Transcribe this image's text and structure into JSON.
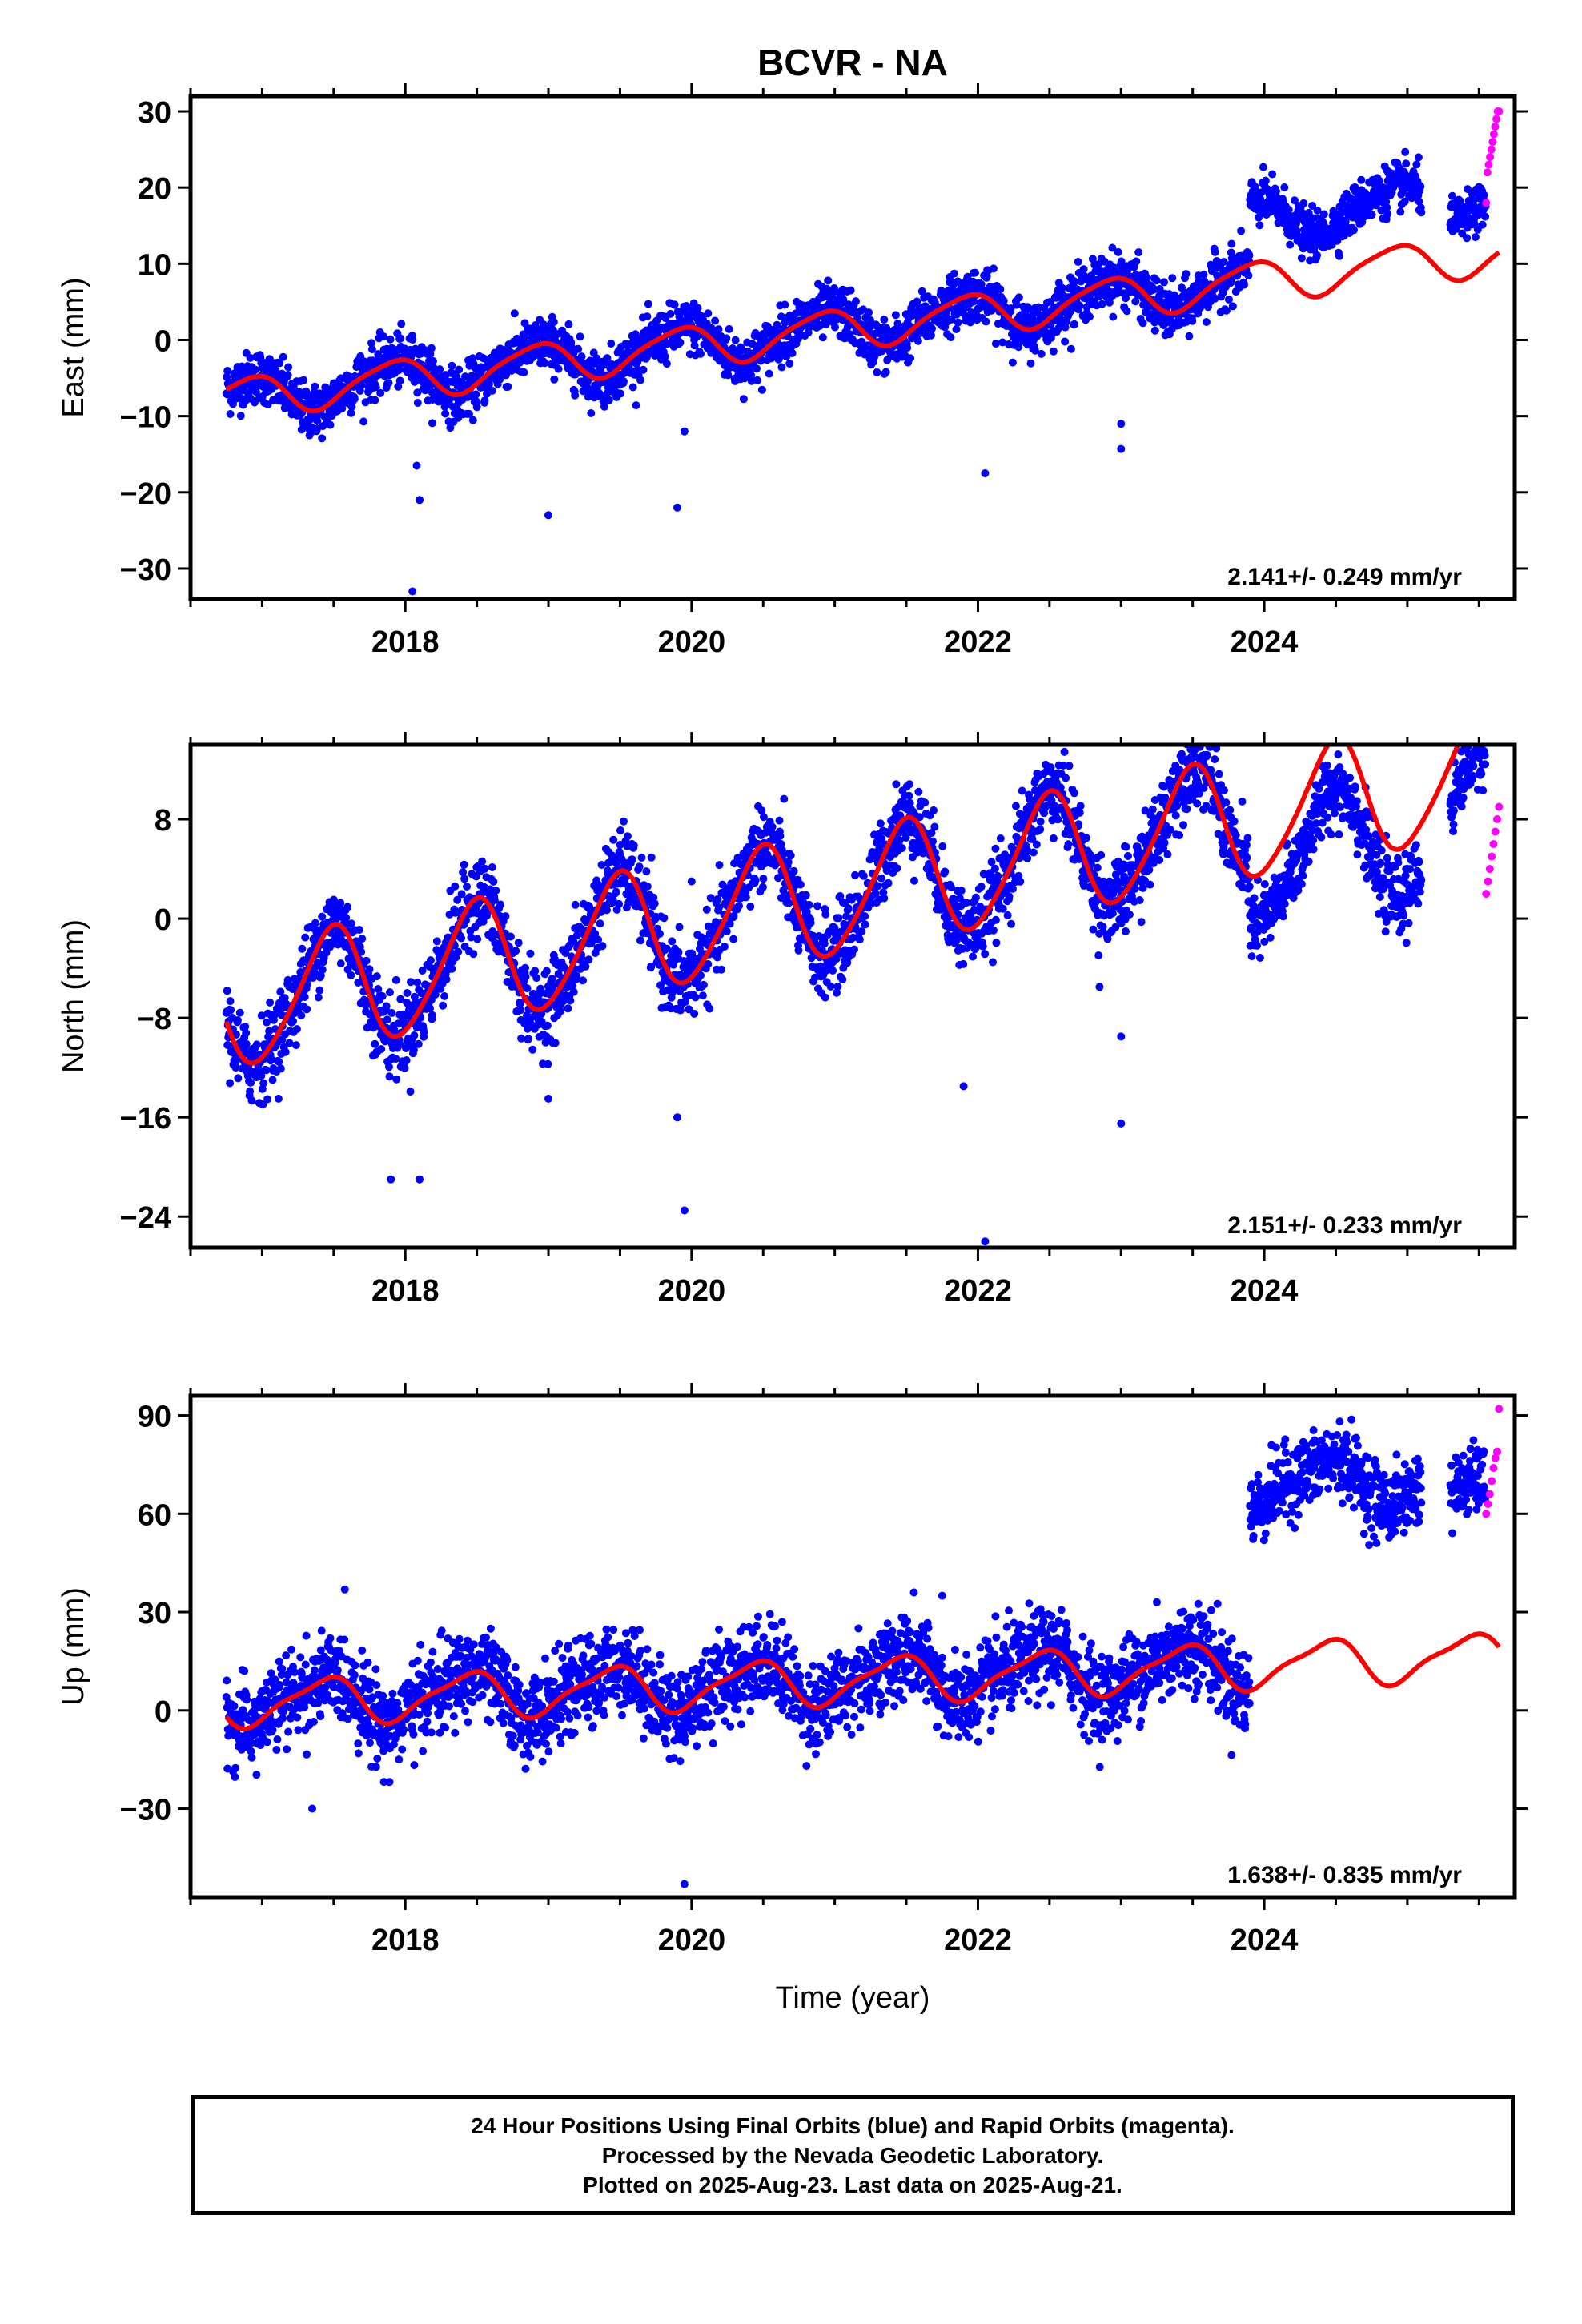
{
  "title": "BCVR - NA",
  "xlabel": "Time (year)",
  "caption": {
    "line1": "24 Hour Positions Using Final Orbits (blue) and Rapid Orbits (magenta).",
    "line2": "Processed by the Nevada Geodetic Laboratory.",
    "line3": "Plotted on 2025-Aug-23. Last data on 2025-Aug-21."
  },
  "colors": {
    "final_orbits": "#0000ff",
    "rapid_orbits": "#ff00ff",
    "model_fit": "#ff0000",
    "axes": "#000000"
  },
  "chart_data": [
    {
      "type": "scatter",
      "component": "east",
      "ylabel": "East (mm)",
      "xlim": [
        2016.5,
        2025.75
      ],
      "ylim": [
        -34,
        32
      ],
      "yticks": [
        -30,
        -20,
        -10,
        0,
        10,
        20,
        30
      ],
      "xticks": [
        2018,
        2020,
        2022,
        2024
      ],
      "rate_label": "2.141+/- 0.249 mm/yr",
      "model": {
        "rate": 2.141,
        "rate_sigma": 0.249,
        "t0": 2016.75,
        "offset": -7.7,
        "annual_sin": -1.5,
        "annual_cos": 2.1,
        "semiannual_sin": 0.4,
        "semiannual_cos": 0.3,
        "jump_2023_9": 0
      },
      "final_segments": [
        {
          "start": 2016.75,
          "end": 2023.9,
          "offset": 0,
          "scatter": 1.7
        },
        {
          "start": 2023.9,
          "end": 2025.1,
          "offset": 8,
          "scatter": 1.5
        },
        {
          "start": 2025.3,
          "end": 2025.55,
          "offset": 8,
          "scatter": 1.4
        }
      ],
      "rapid_window": [
        2025.55,
        2025.64
      ],
      "rapid_values": [
        18,
        22,
        23,
        24,
        25,
        26,
        27,
        28,
        29,
        30,
        30
      ],
      "outliers": [
        [
          2018.05,
          -33
        ],
        [
          2018.1,
          -21
        ],
        [
          2018.08,
          -16.5
        ],
        [
          2019.0,
          -23
        ],
        [
          2019.9,
          -22
        ],
        [
          2019.95,
          -12
        ],
        [
          2022.05,
          -17.5
        ],
        [
          2023.0,
          -11
        ],
        [
          2023.0,
          -14.3
        ]
      ]
    },
    {
      "type": "scatter",
      "component": "north",
      "ylabel": "North (mm)",
      "xlim": [
        2016.5,
        2025.75
      ],
      "ylim": [
        -26.5,
        14
      ],
      "yticks": [
        -24,
        -16,
        -8,
        0,
        8
      ],
      "xticks": [
        2018,
        2020,
        2022,
        2024
      ],
      "rate_label": "2.151+/- 0.233 mm/yr",
      "model": {
        "rate": 2.151,
        "rate_sigma": 0.233,
        "t0": 2016.75,
        "offset": -7.3,
        "annual_sin": 0.6,
        "annual_cos": -4.8,
        "semiannual_sin": 0.5,
        "semiannual_cos": 0.4
      },
      "final_segments": [
        {
          "start": 2016.75,
          "end": 2023.9,
          "offset": 0,
          "scatter": 1.6
        },
        {
          "start": 2023.9,
          "end": 2025.1,
          "offset": -4,
          "scatter": 1.4
        },
        {
          "start": 2025.3,
          "end": 2025.55,
          "offset": -3.5,
          "scatter": 1.2
        }
      ],
      "rapid_window": [
        2025.55,
        2025.64
      ],
      "rapid_values": [
        2,
        3,
        4,
        5,
        6,
        7,
        8,
        9
      ],
      "outliers": [
        [
          2017.9,
          -21
        ],
        [
          2018.1,
          -21
        ],
        [
          2019.0,
          -14.5
        ],
        [
          2019.9,
          -16
        ],
        [
          2019.95,
          -23.5
        ],
        [
          2020.0,
          3
        ],
        [
          2021.9,
          -13.5
        ],
        [
          2022.05,
          -26
        ],
        [
          2022.85,
          -5.5
        ],
        [
          2023.0,
          -16.5
        ],
        [
          2023.0,
          -9.5
        ]
      ]
    },
    {
      "type": "scatter",
      "component": "up",
      "ylabel": "Up (mm)",
      "xlim": [
        2016.5,
        2025.75
      ],
      "ylim": [
        -57,
        96
      ],
      "yticks": [
        -30,
        0,
        30,
        60,
        90
      ],
      "xticks": [
        2018,
        2020,
        2022,
        2024
      ],
      "rate_label": "1.638+/- 0.835 mm/yr",
      "model": {
        "rate": 1.638,
        "rate_sigma": 0.835,
        "t0": 2016.75,
        "offset": 2.0,
        "annual_sin": 3.0,
        "annual_cos": -6.0,
        "semiannual_sin": 1.5,
        "semiannual_cos": 1.0
      },
      "final_segments": [
        {
          "start": 2016.75,
          "end": 2023.9,
          "offset": 0,
          "scatter": 6.5
        },
        {
          "start": 2023.9,
          "end": 2025.1,
          "offset": 55,
          "scatter": 5.5
        },
        {
          "start": 2025.3,
          "end": 2025.55,
          "offset": 47,
          "scatter": 5
        }
      ],
      "rapid_window": [
        2025.55,
        2025.64
      ],
      "rapid_values": [
        60,
        63,
        66,
        70,
        74,
        77,
        79,
        92
      ],
      "outliers": [
        [
          2017.35,
          -30
        ],
        [
          2019.95,
          -53
        ],
        [
          2021.75,
          35
        ],
        [
          2023.25,
          33
        ]
      ]
    }
  ]
}
